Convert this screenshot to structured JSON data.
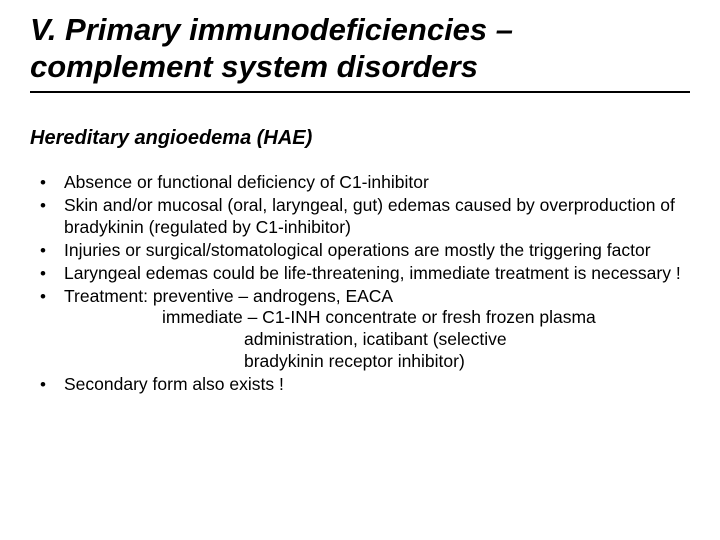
{
  "title_line1": "V. Primary immunodeficiencies –",
  "title_line2": "complement system disorders",
  "subtitle": "Hereditary angioedema (HAE)",
  "bullets": {
    "b0": "Absence or functional deficiency of C1-inhibitor",
    "b1": "Skin and/or mucosal (oral, laryngeal, gut) edemas caused by overproduction of bradykinin (regulated by C1-inhibitor)",
    "b2": "Injuries or surgical/stomatological operations are mostly the triggering factor",
    "b3": "Laryngeal edemas could be life-threatening, immediate treatment is necessary !",
    "b4_line1": "Treatment: preventive – androgens, EACA",
    "b4_line2": "immediate – C1-INH concentrate or fresh frozen plasma",
    "b4_line3": "administration, icatibant (selective",
    "b4_line4": "bradykinin receptor inhibitor)",
    "b5": "Secondary form also exists !"
  }
}
